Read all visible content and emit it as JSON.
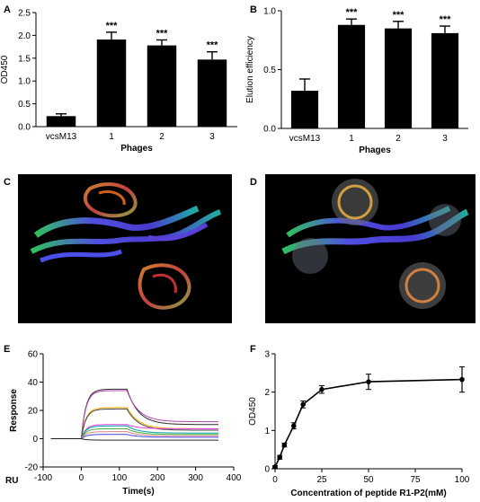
{
  "panels": {
    "A": "A",
    "B": "B",
    "C": "C",
    "D": "D",
    "E": "E",
    "F": "F"
  },
  "chart_data": [
    {
      "id": "A",
      "type": "bar",
      "categories": [
        "vcsM13",
        "1",
        "2",
        "3"
      ],
      "values": [
        0.23,
        1.91,
        1.78,
        1.47
      ],
      "errors": [
        0.05,
        0.16,
        0.12,
        0.17
      ],
      "significance": [
        "",
        "***",
        "***",
        "***"
      ],
      "xlabel": "Phages",
      "ylabel": "OD450",
      "ylim": [
        0,
        2.5
      ],
      "yticks": [
        0.0,
        0.5,
        1.0,
        1.5,
        2.0,
        2.5
      ],
      "ytick_labels": [
        "0.0",
        "0.5",
        "1.0",
        "1.5",
        "2.0",
        "2.5"
      ],
      "bar_color": "#000000"
    },
    {
      "id": "B",
      "type": "bar",
      "categories": [
        "vcsM13",
        "1",
        "2",
        "3"
      ],
      "values": [
        0.32,
        0.88,
        0.85,
        0.81
      ],
      "errors": [
        0.1,
        0.05,
        0.06,
        0.06
      ],
      "significance": [
        "",
        "***",
        "***",
        "***"
      ],
      "xlabel": "Phages",
      "ylabel": "Elution efficiency",
      "ylim": [
        0,
        1.0
      ],
      "yticks": [
        0.0,
        0.5,
        1.0
      ],
      "ytick_labels": [
        "0.0",
        "0.5",
        "1.0"
      ],
      "bar_color": "#000000"
    },
    {
      "id": "E",
      "type": "line",
      "xlabel": "Time(s)",
      "ylabel": "Response",
      "ylabel_units": "RU",
      "xlim": [
        -100,
        400
      ],
      "ylim": [
        -20,
        60
      ],
      "xticks": [
        -100,
        0,
        100,
        200,
        300,
        400
      ],
      "yticks": [
        -20,
        0,
        20,
        40,
        60
      ],
      "injection_start": 0,
      "injection_end": 120,
      "baseline_x": [
        -80,
        360
      ],
      "series": [
        {
          "color": "#2a2a2a",
          "plateau": 35,
          "end": 10
        },
        {
          "color": "#b040b0",
          "plateau": 34,
          "end": 12
        },
        {
          "color": "#ffb000",
          "plateau": 22,
          "end": 7
        },
        {
          "color": "#404040",
          "plateau": 21,
          "end": 6
        },
        {
          "color": "#e040e0",
          "plateau": 10,
          "end": 7
        },
        {
          "color": "#00a0a0",
          "plateau": 9,
          "end": 4
        },
        {
          "color": "#40b040",
          "plateau": 7,
          "end": 3
        },
        {
          "color": "#e08080",
          "plateau": 5,
          "end": 2
        },
        {
          "color": "#4040e0",
          "plateau": 3,
          "end": 1
        },
        {
          "color": "#202020",
          "plateau": -1,
          "end": -1
        }
      ]
    },
    {
      "id": "F",
      "type": "line",
      "x": [
        0,
        2.5,
        5,
        10,
        15,
        25,
        50,
        100
      ],
      "y": [
        0.05,
        0.3,
        0.62,
        1.12,
        1.68,
        2.07,
        2.27,
        2.33
      ],
      "errors": [
        0.03,
        0.05,
        0.05,
        0.08,
        0.09,
        0.1,
        0.2,
        0.33
      ],
      "xlabel": "Concentration of peptide R1-P2(mM)",
      "ylabel": "OD450",
      "xlim": [
        0,
        100
      ],
      "ylim": [
        0,
        3
      ],
      "xticks": [
        0,
        25,
        50,
        75,
        100
      ],
      "yticks": [
        0,
        1,
        2,
        3
      ],
      "line_color": "#000000"
    }
  ]
}
